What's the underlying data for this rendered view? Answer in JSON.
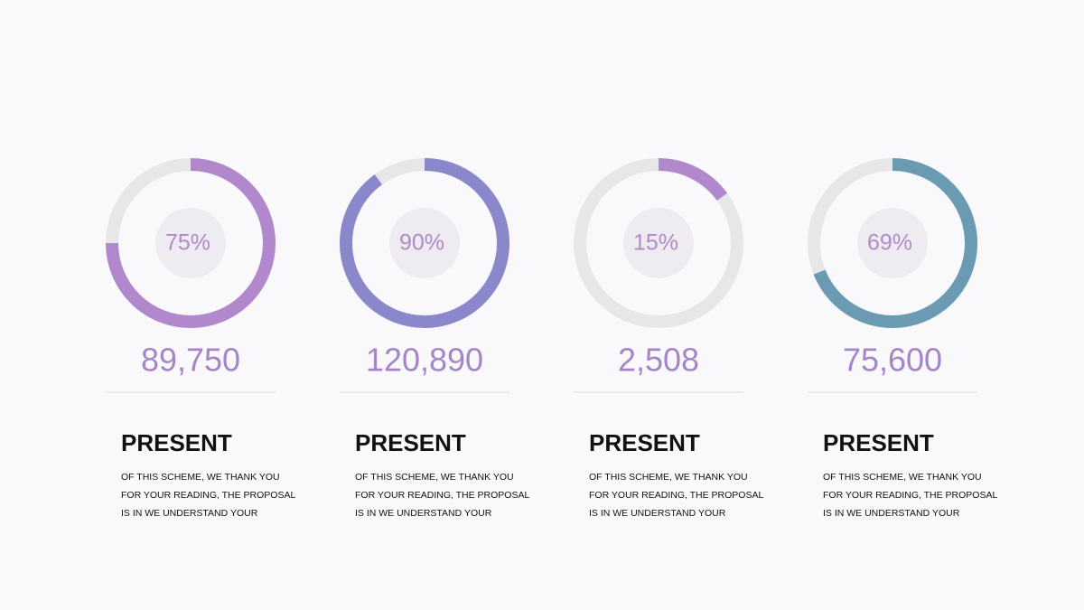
{
  "cards": [
    {
      "gauge": {
        "value": 75,
        "label": "75%",
        "color": "#b088cb"
      },
      "amount": "89,750",
      "heading": "PRESENT",
      "lines": [
        "OF THIS SCHEME, WE THANK YOU",
        "FOR YOUR READING, THE PROPOSAL",
        "IS IN WE UNDERSTAND YOUR"
      ]
    },
    {
      "gauge": {
        "value": 90,
        "label": "90%",
        "color": "#8b87cb"
      },
      "amount": "120,890",
      "heading": "PRESENT",
      "lines": [
        "OF THIS SCHEME, WE THANK YOU",
        "FOR YOUR READING, THE PROPOSAL",
        "IS IN WE UNDERSTAND YOUR"
      ]
    },
    {
      "gauge": {
        "value": 15,
        "label": "15%",
        "color": "#b088cb"
      },
      "amount": "2,508",
      "heading": "PRESENT",
      "lines": [
        "OF THIS SCHEME, WE THANK YOU",
        "FOR YOUR READING, THE PROPOSAL",
        "IS IN WE UNDERSTAND YOUR"
      ]
    },
    {
      "gauge": {
        "value": 69,
        "label": "69%",
        "color": "#6a9bb3"
      },
      "amount": "75,600",
      "heading": "PRESENT",
      "lines": [
        "OF THIS SCHEME, WE THANK YOU",
        "FOR YOUR READING, THE PROPOSAL",
        "IS IN WE UNDERSTAND YOUR"
      ]
    }
  ]
}
